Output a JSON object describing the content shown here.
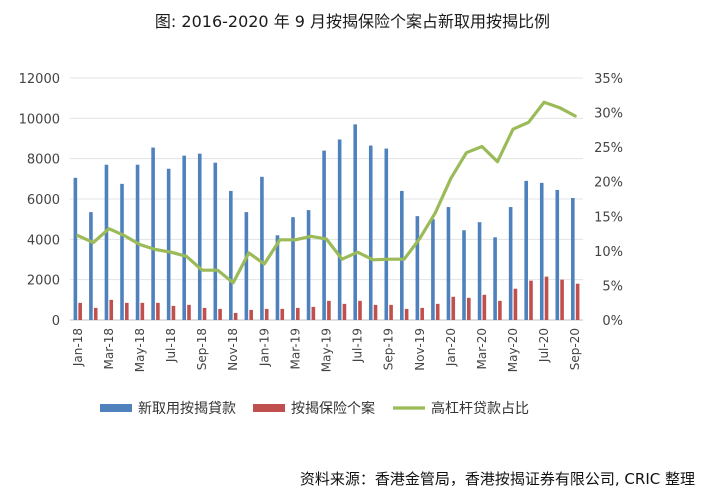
{
  "title": "图: 2016-2020 年 9 月按揭保险个案占新取用按揭比例",
  "source": "资料来源：香港金管局，香港按揭证券有限公司, CRIC 整理",
  "chart_data": {
    "type": "bar+line",
    "months": [
      "Jan-18",
      "Feb-18",
      "Mar-18",
      "Apr-18",
      "May-18",
      "Jun-18",
      "Jul-18",
      "Aug-18",
      "Sep-18",
      "Oct-18",
      "Nov-18",
      "Dec-18",
      "Jan-19",
      "Feb-19",
      "Mar-19",
      "Apr-19",
      "May-19",
      "Jun-19",
      "Jul-19",
      "Aug-19",
      "Sep-19",
      "Oct-19",
      "Nov-19",
      "Dec-19",
      "Jan-20",
      "Feb-20",
      "Mar-20",
      "Apr-20",
      "May-20",
      "Jun-20",
      "Jul-20",
      "Aug-20",
      "Sep-20"
    ],
    "x_tick_labels": [
      "Jan-18",
      "Mar-18",
      "May-18",
      "Jul-18",
      "Sep-18",
      "Nov-18",
      "Jan-19",
      "Mar-19",
      "May-19",
      "Jul-19",
      "Sep-19",
      "Nov-19",
      "Jan-20",
      "Mar-20",
      "May-20",
      "Jul-20",
      "Sep-20"
    ],
    "y_left": {
      "min": 0,
      "max": 12000,
      "ticks": [
        "0",
        "2000",
        "4000",
        "6000",
        "8000",
        "10000",
        "12000"
      ]
    },
    "y_right": {
      "min": 0,
      "max": 0.35,
      "ticks": [
        "0%",
        "5%",
        "10%",
        "15%",
        "20%",
        "25%",
        "30%",
        "35%"
      ]
    },
    "series": [
      {
        "name": "新取用按揭貸款",
        "axis": "left",
        "kind": "bar",
        "color": "#4f81bd",
        "values": [
          7050,
          5350,
          7700,
          6750,
          7700,
          8550,
          7500,
          8150,
          8250,
          7800,
          6400,
          5350,
          7100,
          4200,
          5100,
          5450,
          8400,
          8950,
          9700,
          8650,
          8500,
          6400,
          5150,
          5000,
          5600,
          4450,
          4850,
          4100,
          5600,
          6900,
          6800,
          6450,
          6050
        ]
      },
      {
        "name": "按揭保险个案",
        "axis": "left",
        "kind": "bar",
        "color": "#c0504d",
        "values": [
          850,
          600,
          1000,
          850,
          850,
          850,
          700,
          750,
          600,
          550,
          350,
          500,
          550,
          550,
          600,
          650,
          950,
          800,
          950,
          750,
          750,
          550,
          600,
          800,
          1150,
          1100,
          1250,
          950,
          1550,
          1950,
          2150,
          2000,
          1800
        ]
      },
      {
        "name": "高杠杆贷款占比",
        "axis": "right",
        "kind": "line",
        "color": "#9bbb59",
        "values": [
          0.122,
          0.112,
          0.132,
          0.122,
          0.109,
          0.102,
          0.098,
          0.092,
          0.072,
          0.072,
          0.054,
          0.097,
          0.081,
          0.116,
          0.116,
          0.121,
          0.117,
          0.088,
          0.098,
          0.087,
          0.088,
          0.088,
          0.118,
          0.155,
          0.205,
          0.242,
          0.251,
          0.229,
          0.276,
          0.286,
          0.315,
          0.307,
          0.295
        ]
      }
    ],
    "legend": "bottom",
    "grid": "horizontal"
  }
}
